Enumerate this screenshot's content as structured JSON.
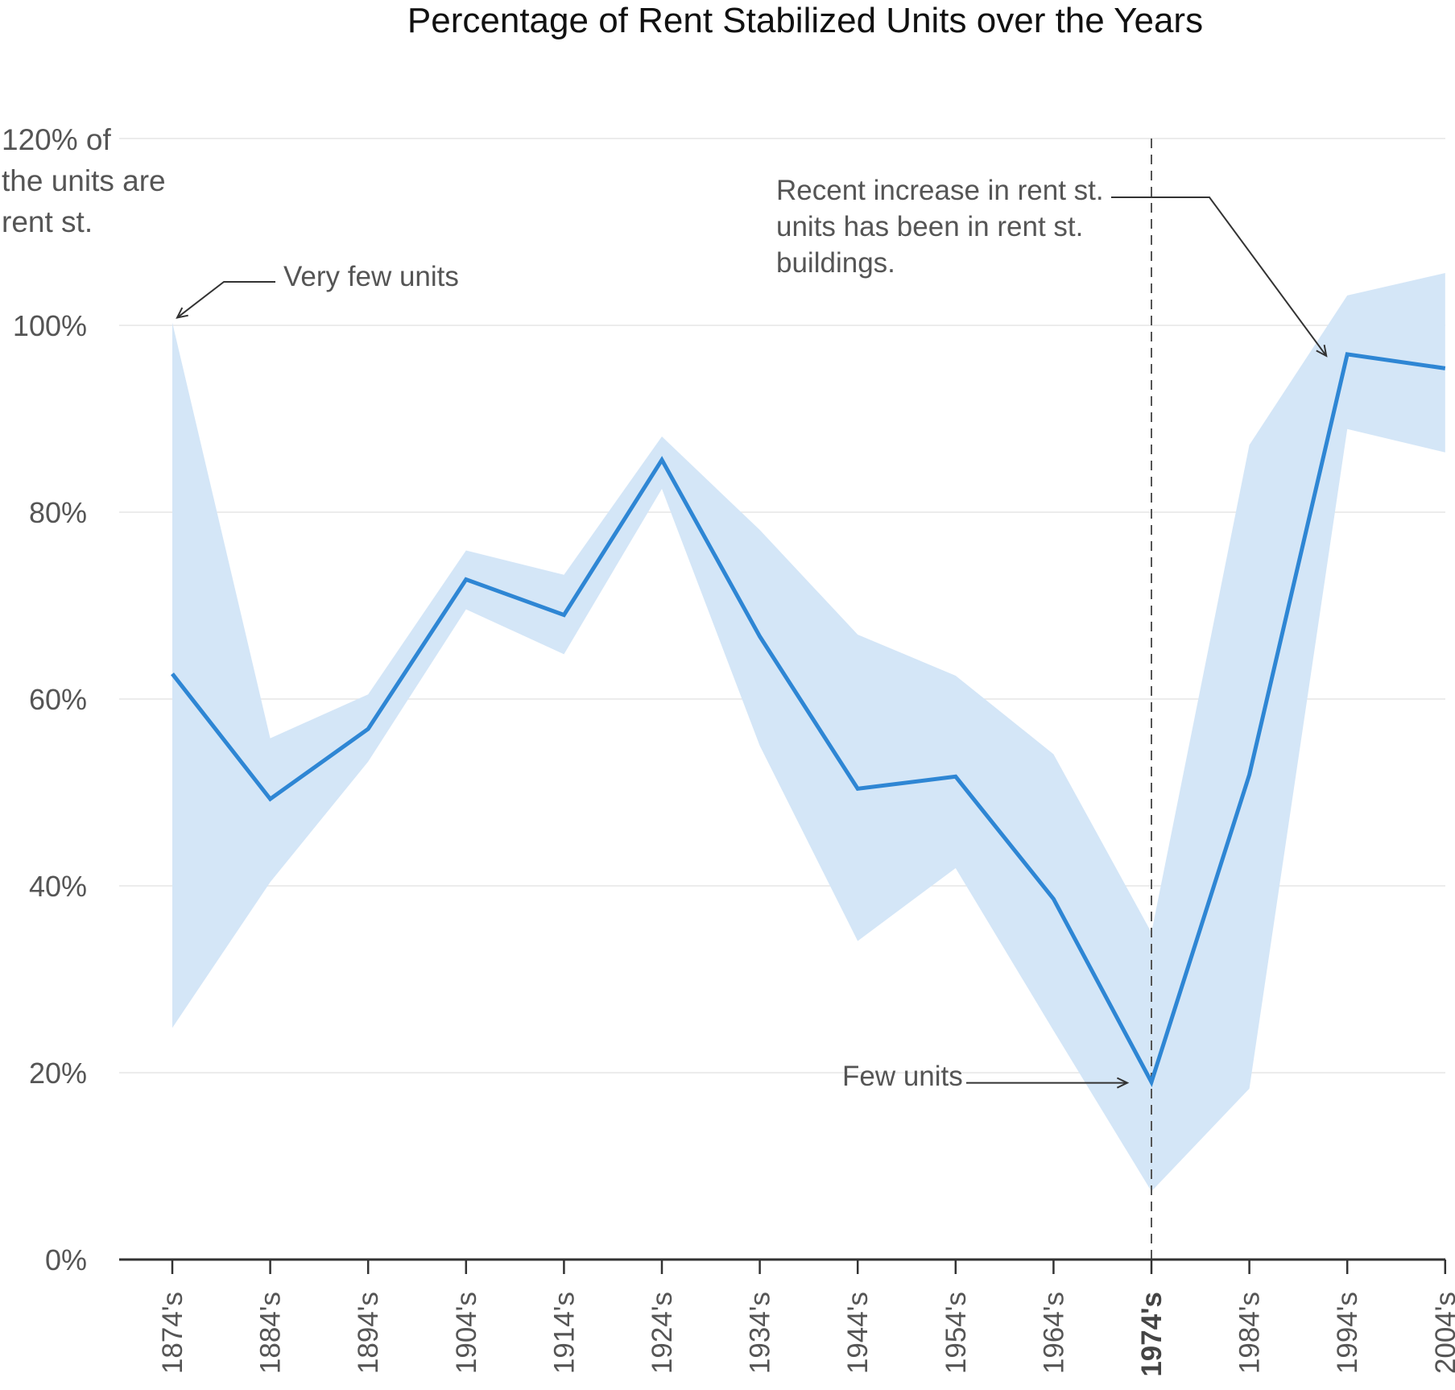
{
  "chart_data": {
    "type": "line",
    "title": "Percentage of Rent Stabilized Units over the Years",
    "y_label_lines": [
      "120% of",
      "the units are",
      "rent st."
    ],
    "y_ticks": [
      "100%",
      "80%",
      "60%",
      "40%",
      "20%",
      "0%"
    ],
    "y_tick_values": [
      100,
      80,
      60,
      40,
      20,
      0
    ],
    "ylim": [
      0,
      120
    ],
    "grid": true,
    "categories": [
      "1874's",
      "1884's",
      "1894's",
      "1904's",
      "1914's",
      "1924's",
      "1934's",
      "1944's",
      "1954's",
      "1964's",
      "1974's",
      "1984's",
      "1994's",
      "2004's"
    ],
    "highlight_category": "1974's",
    "series": [
      {
        "values": [
          62.7,
          49.3,
          56.8,
          72.8,
          69.0,
          85.6,
          66.7,
          50.4,
          51.7,
          38.6,
          19.0,
          51.9,
          96.9,
          95.4
        ],
        "color": "#2e86d4"
      }
    ],
    "band": {
      "upper": [
        100.3,
        55.8,
        60.5,
        75.9,
        73.3,
        88.1,
        78.1,
        66.9,
        62.5,
        54.1,
        35.0,
        87.2,
        103.2,
        105.6
      ],
      "lower": [
        24.8,
        40.4,
        53.3,
        69.6,
        64.8,
        82.5,
        55.0,
        34.1,
        41.9,
        24.5,
        7.3,
        18.3,
        88.9,
        86.4
      ],
      "color": "#d4e6f7"
    },
    "annotations": [
      {
        "lines": [
          "Very few units"
        ],
        "category": "1874's",
        "value": 100.3
      },
      {
        "lines": [
          "Recent increase in rent st.",
          "units has been in rent st.",
          "buildings."
        ],
        "category": "1994's",
        "value": 96.9
      },
      {
        "lines": [
          "Few units"
        ],
        "category": "1974's",
        "value": 19.0
      }
    ]
  }
}
